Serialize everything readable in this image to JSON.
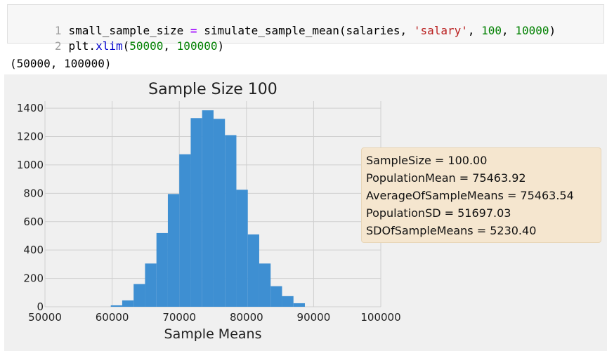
{
  "code_cell": {
    "lines": [
      {
        "number": "1",
        "segments": [
          {
            "text": "small_sample_size ",
            "type": "plain"
          },
          {
            "text": "=",
            "type": "eq"
          },
          {
            "text": " simulate_sample_mean(salaries, ",
            "type": "plain"
          },
          {
            "text": "'salary'",
            "type": "str"
          },
          {
            "text": ", ",
            "type": "plain"
          },
          {
            "text": "100",
            "type": "num"
          },
          {
            "text": ", ",
            "type": "plain"
          },
          {
            "text": "10000",
            "type": "num"
          },
          {
            "text": ")",
            "type": "plain"
          }
        ]
      },
      {
        "number": "2",
        "segments": [
          {
            "text": "plt.",
            "type": "plain"
          },
          {
            "text": "xlim",
            "type": "fn"
          },
          {
            "text": "(",
            "type": "plain"
          },
          {
            "text": "50000",
            "type": "num"
          },
          {
            "text": ", ",
            "type": "plain"
          },
          {
            "text": "100000",
            "type": "num"
          },
          {
            "text": ")",
            "type": "plain"
          }
        ]
      }
    ]
  },
  "output": {
    "text": "(50000, 100000)"
  },
  "colors": {
    "bar": "#3e8fd2",
    "axes_bg": "#f0f0f0",
    "grid": "#cfcfcf",
    "annotation_bg": "#f5e6cf"
  },
  "chart_data": {
    "type": "bar",
    "title": "Sample Size 100",
    "xlabel": "Sample Means",
    "ylabel": "",
    "xlim": [
      50000,
      100000
    ],
    "ylim": [
      0,
      1450
    ],
    "grid": true,
    "x_ticks": [
      50000,
      60000,
      70000,
      80000,
      90000,
      100000
    ],
    "x_tick_labels": [
      "50000",
      "60000",
      "70000",
      "80000",
      "90000",
      "100000"
    ],
    "y_ticks": [
      0,
      200,
      400,
      600,
      800,
      1000,
      1200,
      1400
    ],
    "y_tick_labels": [
      "0",
      "200",
      "400",
      "600",
      "800",
      "1000",
      "1200",
      "1400"
    ],
    "bin_edges": [
      59800,
      61500,
      63200,
      64900,
      66600,
      68300,
      70000,
      71700,
      73400,
      75100,
      76800,
      78500,
      80200,
      81900,
      83600,
      85300,
      87000,
      88700,
      90400
    ],
    "values": [
      10,
      45,
      160,
      305,
      520,
      795,
      1075,
      1330,
      1385,
      1325,
      1210,
      825,
      510,
      305,
      145,
      75,
      25,
      0
    ],
    "annotation": {
      "lines": [
        "SampleSize = 100.00",
        "PopulationMean = 75463.92",
        "AverageOfSampleMeans = 75463.54",
        "PopulationSD = 51697.03",
        "SDOfSampleMeans = 5230.40"
      ]
    }
  }
}
